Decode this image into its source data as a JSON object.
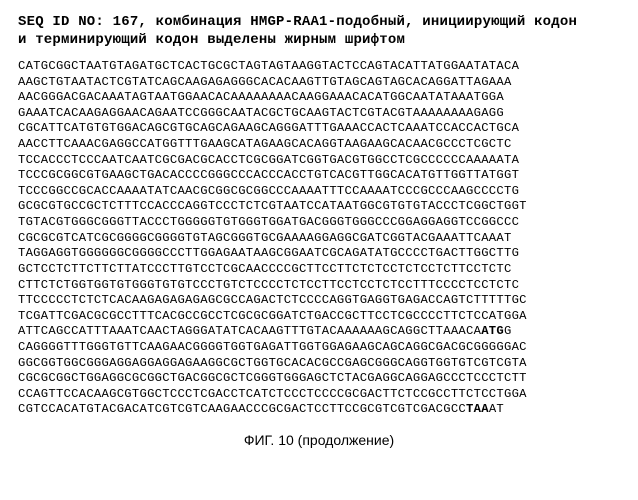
{
  "header_line1": "SEQ ID NO: 167, комбинация HMGP-RAA1-подобный, инициирующий кодон",
  "header_line2": "и терминирующий кодон выделены жирным шрифтом",
  "lines": [
    "CATGCGGCTAATGTAGATGCTCACTGCGCTAGTAGTAAGGTACTCCAGTACATTATGGAATATACA",
    "AAGCTGTAATACTCGTATCAGCAAGAGAGGGCACACAAGTTGTAGCAGTAGCACAGGATTAGAAA",
    "AACGGGACGACAAATAGTAATGGAACACAAAAAAAACAAGGAAACACATGGCAATATAAATGGA",
    "GAAATCACAAGAGGAACAGAATCCGGGCAATACGCTGCAAGTACTCGTACGTAAAAAAAAGAGG",
    "CGCATTCATGTGTGGACAGCGTGCAGCAGAAGCAGGGATTTGAAACCACTCAAATCCACCACTGCA",
    "AACCTTCAAACGAGGCCATGGTTTGAAGCATAGAAGCACAGGTAAGAAGCACAACGCCCTCGCTC",
    "TCCACCCTCCCAATCAATCGCGACGCACCTCGCGGATCGGTGACGTGGCCTCGCCCCCCAAAAATA",
    "TCCCGCGGCGTGAAGCTGACACCCCGGGCCCACCCACCTGTCACGTTGGCACATGTTGGTTATGGT",
    "TCCCGGCCGCACCAAAATATCAACGCGGCGCGGCCCAAAATTTCCAAAATCCCGCCCAAGCCCCTG",
    "GCGCGTGCCGCTCTTTCCACCCAGGTCCCTCTCGTAATCCATAATGGCGTGTGTACCCTCGGCTGGT",
    "TGTACGTGGGCGGGTTACCCTGGGGGTGTGGGTGGATGACGGGTGGGCCCGGAGGAGGTCCGGCCC",
    "CGCGCGTCATCGCGGGGCGGGGTGTAGCGGGTGCGAAAAGGAGGCGATCGGTACGAAATTCAAAT",
    "TAGGAGGTGGGGGGCGGGGCCCTTGGAGAATAAGCGGAATCGCAGATATGCCCCTGACTTGGCTTG",
    "GCTCCTCTTCTTCTTATCCCTTGTCCTCGCAACCCCGCTTCCTTCTCTCCTCTCCTCTTCCTCTC",
    "CTTCTCTGGTGGTGTGGGTGTGTCCCTGTCTCCCCTCTCCTTCCTCCTCTCCTTTCCCCTCCTCTC",
    "TTCCCCCTCTCTCACAAGAGAGAGAGCGCCAGACTCTCCCCAGGTGAGGTGAGACCAGTCTTTTTGC",
    "TCGATTCGACGCGCCTTTCACGCCGCCTCGCGCGGATCTGACCGCTTCCTCGCCCCTTCTCCATGGA"
  ],
  "line_bold_a": "ATTCAGCCATTTAAATCAACTAGGGATATCACAAGTTTGTACAAAAAAGCAGGCTTAAACA",
  "bold1": "ATG",
  "line_bold_a_after": "G",
  "lines2": [
    "CAGGGGTTTGGGTGTTCAAGAACGGGGTGGTGAGATTGGTGGAGAAGCAGCAGGCGACGCGGGGGAC",
    "GGCGGTGGCGGGAGGAGGAGGAGAAGGCGCTGGTGCACACGCCGAGCGGGCAGGTGGTGTCGTCGTA",
    "CGCGCGGCTGGAGGCGCGGCTGACGGCGCTCGGGTGGGAGCTCTACGAGGCAGGAGCCCTCCCTCTT",
    "CCAGTTCCACAAGCGTGGCTCCCTCGACCTCATCTCCCTCCCCGCGACTTCTCCGCCTTCTCCTGGA"
  ],
  "line_bold_b": "CGTCCACATGTACGACATCGTCGTCAAGAACCCGCGACTCCTTCCGCGTCGTCGACGCC",
  "bold2": "TAA",
  "line_bold_b_after": "AT",
  "caption": "ФИГ. 10 (продолжение)"
}
